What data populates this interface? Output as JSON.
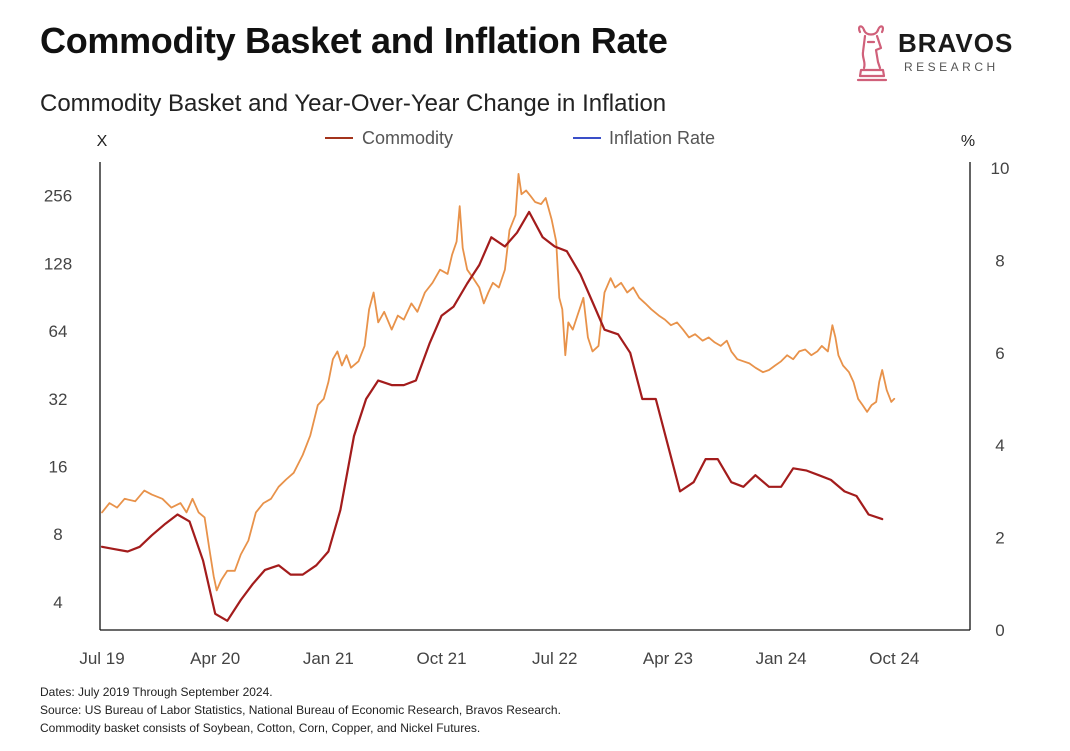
{
  "header": {
    "title": "Commodity Basket and Inflation Rate",
    "subtitle": "Commodity Basket and Year-Over-Year Change in Inflation"
  },
  "logo": {
    "name": "BRAVOS",
    "tagline": "RESEARCH",
    "icon": "bull-chess-knight-icon",
    "color": "#d0607a"
  },
  "footer": {
    "dates": "Dates: July 2019 Through September 2024.",
    "source": "Source: US Bureau of Labor Statistics, National Bureau of Economic Research, Bravos Research.",
    "note": "Commodity basket consists of Soybean, Cotton, Corn, Copper, and Nickel Futures."
  },
  "chart_data": {
    "type": "line",
    "left_axis": {
      "unit": "X",
      "scale": "log2",
      "ticks": [
        4,
        8,
        16,
        32,
        64,
        128,
        256
      ],
      "range": [
        3,
        340
      ]
    },
    "right_axis": {
      "unit": "%",
      "ticks": [
        0,
        2,
        4,
        6,
        8,
        10
      ],
      "range": [
        0,
        10
      ]
    },
    "x_axis": {
      "range": [
        2019.5,
        2025.0
      ],
      "ticks": [
        {
          "label": "Jul 19",
          "x": 2019.5
        },
        {
          "label": "Apr 20",
          "x": 2020.25
        },
        {
          "label": "Jan 21",
          "x": 2021.0
        },
        {
          "label": "Oct 21",
          "x": 2021.75
        },
        {
          "label": "Jul 22",
          "x": 2022.5
        },
        {
          "label": "Apr 23",
          "x": 2023.25
        },
        {
          "label": "Jan 24",
          "x": 2024.0
        },
        {
          "label": "Oct 24",
          "x": 2024.75
        }
      ]
    },
    "grid": false,
    "legend": {
      "position": "top-center"
    },
    "series": [
      {
        "name": "Commodity",
        "axis": "left",
        "color": "#e8924a",
        "points": [
          [
            2019.5,
            10
          ],
          [
            2019.55,
            11
          ],
          [
            2019.6,
            10.5
          ],
          [
            2019.65,
            11.5
          ],
          [
            2019.72,
            11.2
          ],
          [
            2019.78,
            12.5
          ],
          [
            2019.83,
            12
          ],
          [
            2019.9,
            11.5
          ],
          [
            2019.96,
            10.5
          ],
          [
            2020.02,
            11
          ],
          [
            2020.06,
            10
          ],
          [
            2020.1,
            11.5
          ],
          [
            2020.14,
            10
          ],
          [
            2020.18,
            9.5
          ],
          [
            2020.21,
            7
          ],
          [
            2020.24,
            5.2
          ],
          [
            2020.26,
            4.5
          ],
          [
            2020.29,
            5
          ],
          [
            2020.33,
            5.5
          ],
          [
            2020.38,
            5.5
          ],
          [
            2020.42,
            6.5
          ],
          [
            2020.47,
            7.5
          ],
          [
            2020.52,
            10
          ],
          [
            2020.57,
            11
          ],
          [
            2020.62,
            11.5
          ],
          [
            2020.67,
            13
          ],
          [
            2020.72,
            14
          ],
          [
            2020.77,
            15
          ],
          [
            2020.83,
            18
          ],
          [
            2020.88,
            22
          ],
          [
            2020.93,
            30
          ],
          [
            2020.97,
            32
          ],
          [
            2021.0,
            38
          ],
          [
            2021.03,
            48
          ],
          [
            2021.06,
            52
          ],
          [
            2021.09,
            45
          ],
          [
            2021.12,
            50
          ],
          [
            2021.15,
            44
          ],
          [
            2021.2,
            47
          ],
          [
            2021.24,
            55
          ],
          [
            2021.27,
            80
          ],
          [
            2021.3,
            95
          ],
          [
            2021.33,
            70
          ],
          [
            2021.37,
            78
          ],
          [
            2021.42,
            65
          ],
          [
            2021.46,
            75
          ],
          [
            2021.5,
            72
          ],
          [
            2021.55,
            85
          ],
          [
            2021.59,
            78
          ],
          [
            2021.64,
            95
          ],
          [
            2021.69,
            105
          ],
          [
            2021.74,
            120
          ],
          [
            2021.79,
            115
          ],
          [
            2021.82,
            140
          ],
          [
            2021.85,
            160
          ],
          [
            2021.87,
            230
          ],
          [
            2021.89,
            150
          ],
          [
            2021.92,
            120
          ],
          [
            2021.96,
            110
          ],
          [
            2022.0,
            100
          ],
          [
            2022.03,
            85
          ],
          [
            2022.06,
            95
          ],
          [
            2022.09,
            105
          ],
          [
            2022.13,
            100
          ],
          [
            2022.17,
            120
          ],
          [
            2022.2,
            180
          ],
          [
            2022.24,
            210
          ],
          [
            2022.26,
            320
          ],
          [
            2022.28,
            260
          ],
          [
            2022.31,
            270
          ],
          [
            2022.34,
            255
          ],
          [
            2022.37,
            240
          ],
          [
            2022.41,
            235
          ],
          [
            2022.44,
            250
          ],
          [
            2022.48,
            200
          ],
          [
            2022.51,
            160
          ],
          [
            2022.53,
            90
          ],
          [
            2022.55,
            80
          ],
          [
            2022.57,
            50
          ],
          [
            2022.59,
            70
          ],
          [
            2022.62,
            65
          ],
          [
            2022.65,
            75
          ],
          [
            2022.69,
            90
          ],
          [
            2022.72,
            60
          ],
          [
            2022.75,
            52
          ],
          [
            2022.79,
            55
          ],
          [
            2022.83,
            95
          ],
          [
            2022.87,
            110
          ],
          [
            2022.9,
            100
          ],
          [
            2022.94,
            105
          ],
          [
            2022.98,
            95
          ],
          [
            2023.02,
            100
          ],
          [
            2023.06,
            90
          ],
          [
            2023.1,
            85
          ],
          [
            2023.14,
            80
          ],
          [
            2023.19,
            75
          ],
          [
            2023.23,
            72
          ],
          [
            2023.27,
            68
          ],
          [
            2023.31,
            70
          ],
          [
            2023.35,
            65
          ],
          [
            2023.39,
            60
          ],
          [
            2023.43,
            62
          ],
          [
            2023.48,
            58
          ],
          [
            2023.52,
            60
          ],
          [
            2023.56,
            57
          ],
          [
            2023.6,
            55
          ],
          [
            2023.64,
            58
          ],
          [
            2023.67,
            52
          ],
          [
            2023.71,
            48
          ],
          [
            2023.75,
            47
          ],
          [
            2023.79,
            46
          ],
          [
            2023.83,
            44
          ],
          [
            2023.88,
            42
          ],
          [
            2023.92,
            43
          ],
          [
            2023.96,
            45
          ],
          [
            2024.0,
            47
          ],
          [
            2024.04,
            50
          ],
          [
            2024.08,
            48
          ],
          [
            2024.12,
            52
          ],
          [
            2024.16,
            53
          ],
          [
            2024.2,
            50
          ],
          [
            2024.24,
            52
          ],
          [
            2024.27,
            55
          ],
          [
            2024.31,
            52
          ],
          [
            2024.34,
            68
          ],
          [
            2024.36,
            60
          ],
          [
            2024.38,
            50
          ],
          [
            2024.41,
            45
          ],
          [
            2024.45,
            42
          ],
          [
            2024.48,
            38
          ],
          [
            2024.51,
            32
          ],
          [
            2024.54,
            30
          ],
          [
            2024.57,
            28
          ],
          [
            2024.6,
            30
          ],
          [
            2024.63,
            31
          ],
          [
            2024.65,
            38
          ],
          [
            2024.67,
            43
          ],
          [
            2024.7,
            35
          ],
          [
            2024.73,
            31
          ],
          [
            2024.75,
            32
          ]
        ]
      },
      {
        "name": "Inflation Rate",
        "axis": "right",
        "color": "#a31c1c",
        "legend_color": "#3a4fc8",
        "points": [
          [
            2019.5,
            1.8
          ],
          [
            2019.58,
            1.75
          ],
          [
            2019.67,
            1.7
          ],
          [
            2019.75,
            1.8
          ],
          [
            2019.83,
            2.05
          ],
          [
            2019.92,
            2.3
          ],
          [
            2020.0,
            2.5
          ],
          [
            2020.08,
            2.35
          ],
          [
            2020.17,
            1.5
          ],
          [
            2020.25,
            0.35
          ],
          [
            2020.33,
            0.2
          ],
          [
            2020.42,
            0.65
          ],
          [
            2020.5,
            1.0
          ],
          [
            2020.58,
            1.3
          ],
          [
            2020.67,
            1.4
          ],
          [
            2020.75,
            1.2
          ],
          [
            2020.83,
            1.2
          ],
          [
            2020.92,
            1.4
          ],
          [
            2021.0,
            1.7
          ],
          [
            2021.08,
            2.6
          ],
          [
            2021.17,
            4.2
          ],
          [
            2021.25,
            5.0
          ],
          [
            2021.33,
            5.4
          ],
          [
            2021.42,
            5.3
          ],
          [
            2021.5,
            5.3
          ],
          [
            2021.58,
            5.4
          ],
          [
            2021.67,
            6.2
          ],
          [
            2021.75,
            6.8
          ],
          [
            2021.83,
            7.0
          ],
          [
            2021.92,
            7.5
          ],
          [
            2022.0,
            7.9
          ],
          [
            2022.08,
            8.5
          ],
          [
            2022.17,
            8.3
          ],
          [
            2022.25,
            8.6
          ],
          [
            2022.33,
            9.05
          ],
          [
            2022.42,
            8.5
          ],
          [
            2022.5,
            8.3
          ],
          [
            2022.58,
            8.2
          ],
          [
            2022.67,
            7.7
          ],
          [
            2022.75,
            7.1
          ],
          [
            2022.83,
            6.5
          ],
          [
            2022.92,
            6.4
          ],
          [
            2023.0,
            6.0
          ],
          [
            2023.08,
            5.0
          ],
          [
            2023.17,
            5.0
          ],
          [
            2023.25,
            4.0
          ],
          [
            2023.33,
            3.0
          ],
          [
            2023.42,
            3.2
          ],
          [
            2023.5,
            3.7
          ],
          [
            2023.58,
            3.7
          ],
          [
            2023.67,
            3.2
          ],
          [
            2023.75,
            3.1
          ],
          [
            2023.83,
            3.35
          ],
          [
            2023.92,
            3.1
          ],
          [
            2024.0,
            3.1
          ],
          [
            2024.08,
            3.5
          ],
          [
            2024.17,
            3.45
          ],
          [
            2024.25,
            3.35
          ],
          [
            2024.33,
            3.25
          ],
          [
            2024.42,
            3.0
          ],
          [
            2024.5,
            2.9
          ],
          [
            2024.58,
            2.5
          ],
          [
            2024.67,
            2.4
          ]
        ]
      }
    ]
  }
}
